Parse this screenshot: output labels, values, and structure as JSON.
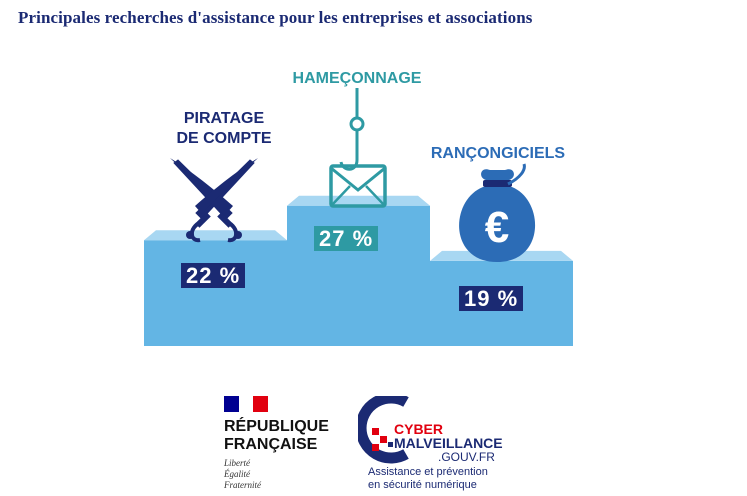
{
  "title": "Principales recherches d'assistance pour les entreprises et associations",
  "chart_data": {
    "type": "bar",
    "style": "podium",
    "categories": [
      "PIRATAGE DE COMPTE",
      "HAMEÇONNAGE",
      "RANÇONGICIELS"
    ],
    "values": [
      22,
      27,
      19
    ],
    "value_labels": [
      "22 %",
      "27 %",
      "19 %"
    ],
    "icons": [
      "crossed-swords-icon",
      "fishing-hook-envelope-icon",
      "euro-money-bag-icon"
    ],
    "colors": {
      "podium": "#63b5e4",
      "podium_top": "#a8d7f2",
      "navy": "#1b2a73",
      "teal": "#2e9aa3",
      "blue": "#2c6cb6"
    }
  },
  "footer": {
    "rf_line1": "RÉPUBLIQUE",
    "rf_line2": "FRANÇAISE",
    "rf_motto1": "Liberté",
    "rf_motto2": "Égalité",
    "rf_motto3": "Fraternité",
    "cm_line1": "CYBER",
    "cm_line2": "MALVEILLANCE",
    "cm_domain": ".GOUV.FR",
    "cm_tagline1": "Assistance et prévention",
    "cm_tagline2": "en sécurité numérique"
  }
}
